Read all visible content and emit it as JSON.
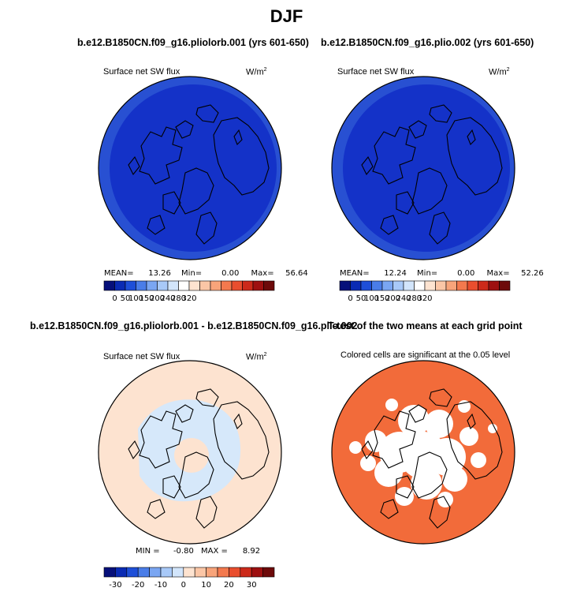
{
  "main_title": "DJF",
  "colors": {
    "polar_dark": "#1432c8",
    "polar_mid": "#2850d2",
    "diff_bg": "#fde3d0",
    "diff_neg": "#d6e8fa",
    "signif": "#f26b3a",
    "coast": "#000000"
  },
  "chart_data": [
    {
      "type": "heatmap",
      "name": "panel-top-left",
      "title": "b.e12.B1850CN.f09_g16.pliolorb.001 (yrs 601-650)",
      "variable_label": "Surface net SW flux",
      "units_label": "W/m",
      "units_exp": "2",
      "stats": {
        "mean_label": "MEAN=",
        "mean": "13.26",
        "min_label": "Min=",
        "min": "0.00",
        "max_label": "Max=",
        "max": "56.64"
      },
      "colorbar": {
        "ticks": [
          "0",
          "50",
          "100",
          "150",
          "200",
          "240",
          "280",
          "320"
        ],
        "colors": [
          "#06107a",
          "#0a2bb4",
          "#1e4fd8",
          "#4a7de8",
          "#7aa6f2",
          "#a8c9f8",
          "#d2e5fb",
          "#ffffff",
          "#fde3d0",
          "#fbc6a6",
          "#f8a47a",
          "#f3794e",
          "#e94e2e",
          "#cc2a1a",
          "#9e1010",
          "#6d0a0a"
        ]
      }
    },
    {
      "type": "heatmap",
      "name": "panel-top-right",
      "title": "b.e12.B1850CN.f09_g16.plio.002 (yrs 601-650)",
      "variable_label": "Surface net SW flux",
      "units_label": "W/m",
      "units_exp": "2",
      "stats": {
        "mean_label": "MEAN=",
        "mean": "12.24",
        "min_label": "Min=",
        "min": "0.00",
        "max_label": "Max=",
        "max": "52.26"
      },
      "colorbar": {
        "ticks": [
          "0",
          "50",
          "100",
          "150",
          "200",
          "240",
          "280",
          "320"
        ],
        "colors": [
          "#06107a",
          "#0a2bb4",
          "#1e4fd8",
          "#4a7de8",
          "#7aa6f2",
          "#a8c9f8",
          "#d2e5fb",
          "#ffffff",
          "#fde3d0",
          "#fbc6a6",
          "#f8a47a",
          "#f3794e",
          "#e94e2e",
          "#cc2a1a",
          "#9e1010",
          "#6d0a0a"
        ]
      }
    },
    {
      "type": "heatmap",
      "name": "panel-bottom-left",
      "title": "b.e12.B1850CN.f09_g16.pliolorb.001 - b.e12.B1850CN.f09_g16.plio.002",
      "variable_label": "Surface net SW flux",
      "units_label": "W/m",
      "units_exp": "2",
      "stats": {
        "min_label": "MIN =",
        "min": "-0.80",
        "max_label": "MAX =",
        "max": "8.92"
      },
      "colorbar": {
        "ticks": [
          "-30",
          "-20",
          "-10",
          "0",
          "10",
          "20",
          "30"
        ],
        "colors": [
          "#06107a",
          "#0a2bb4",
          "#1e4fd8",
          "#4a7de8",
          "#7aa6f2",
          "#a8c9f8",
          "#d2e5fb",
          "#fde3d0",
          "#fbc6a6",
          "#f8a47a",
          "#f3794e",
          "#e94e2e",
          "#cc2a1a",
          "#9e1010",
          "#6d0a0a"
        ]
      }
    },
    {
      "type": "heatmap",
      "name": "panel-bottom-right",
      "title": "T-test of the two means at each grid point",
      "variable_label": "Colored cells are significant at the 0.05 level"
    }
  ]
}
